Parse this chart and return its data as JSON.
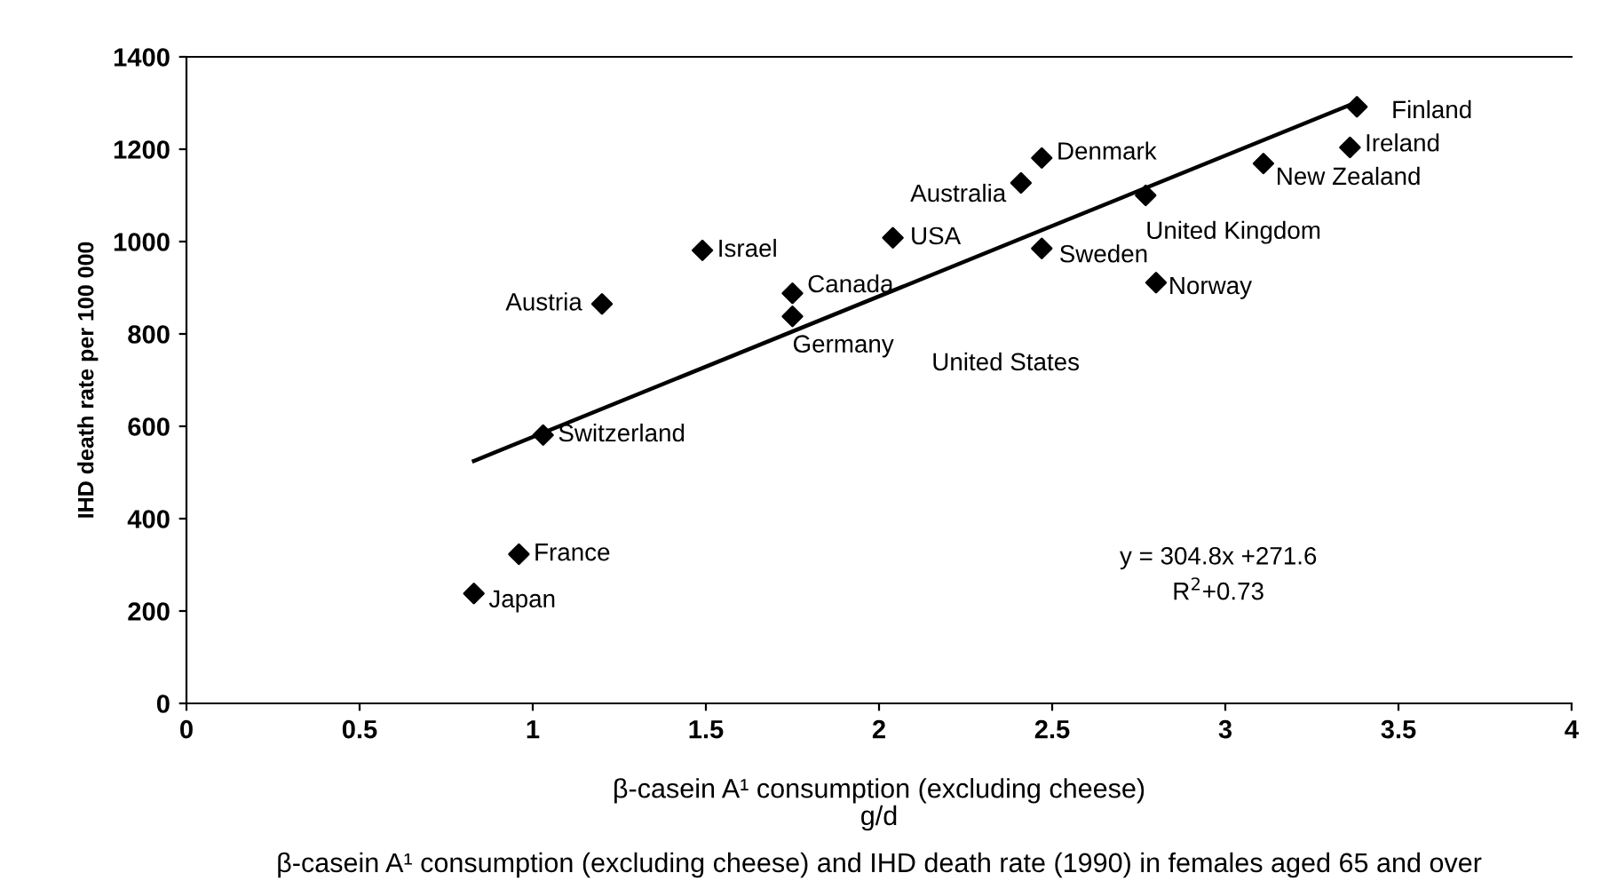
{
  "chart_data": {
    "type": "scatter",
    "xlabel": "β-casein A¹ consumption (excluding cheese)\ng/d",
    "ylabel": "IHD death rate per 100 000",
    "xlim": [
      0,
      4
    ],
    "xticks": [
      0,
      0.5,
      1,
      1.5,
      2,
      2.5,
      3,
      3.5,
      4
    ],
    "ylim": [
      0,
      1400
    ],
    "yticks": [
      0,
      200,
      400,
      600,
      800,
      1000,
      1200,
      1400
    ],
    "grid": false,
    "legend": false,
    "series": [
      {
        "marker": "diamond",
        "color": "#000000",
        "x": [
          0.83,
          0.96,
          1.03,
          1.2,
          1.49,
          1.75,
          1.75,
          2.04,
          2.41,
          2.47,
          2.47,
          2.77,
          2.8,
          3.11,
          3.36,
          3.38
        ],
        "values": [
          238,
          323,
          581,
          865,
          981,
          888,
          838,
          1008,
          1127,
          1181,
          985,
          1100,
          911,
          1169,
          1204,
          1292
        ]
      },
      {
        "type": "line",
        "color": "#000000",
        "x": [
          0.83,
          3.38
        ],
        "values": [
          525,
          1302
        ]
      }
    ],
    "annotations": [
      {
        "text": "Japan",
        "x": 0.83,
        "y": 238
      },
      {
        "text": "France",
        "x": 0.96,
        "y": 323
      },
      {
        "text": "Switzerland",
        "x": 1.03,
        "y": 581
      },
      {
        "text": "Austria",
        "x": 1.2,
        "y": 865
      },
      {
        "text": "Israel",
        "x": 1.49,
        "y": 981
      },
      {
        "text": "Canada",
        "x": 1.75,
        "y": 888
      },
      {
        "text": "Germany",
        "x": 1.75,
        "y": 838
      },
      {
        "text": "USA",
        "x": 2.04,
        "y": 1008
      },
      {
        "text": "Australia",
        "x": 2.41,
        "y": 1127
      },
      {
        "text": "Denmark",
        "x": 2.47,
        "y": 1181
      },
      {
        "text": "Sweden",
        "x": 2.47,
        "y": 985
      },
      {
        "text": "United Kingdom",
        "x": 2.77,
        "y": 1100
      },
      {
        "text": "Norway",
        "x": 2.8,
        "y": 911
      },
      {
        "text": "New Zealand",
        "x": 3.11,
        "y": 1169
      },
      {
        "text": "Ireland",
        "x": 3.36,
        "y": 1204
      },
      {
        "text": "Finland",
        "x": 3.38,
        "y": 1292
      },
      "United States",
      "y = 304.8x +271.6",
      "R$^{2}$+0.73",
      "β-casein A¹ consumption (excluding cheese) and IHD death rate (1990) in females aged 65 and over"
    ]
  }
}
